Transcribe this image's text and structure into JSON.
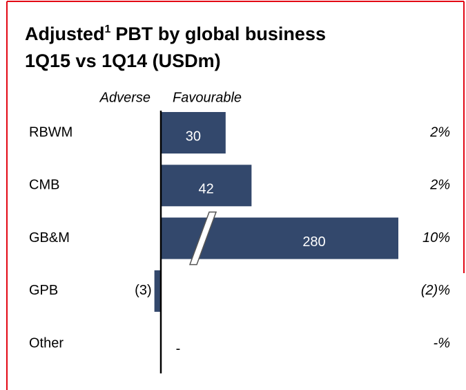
{
  "chart_data": {
    "type": "bar",
    "orientation": "horizontal",
    "title_parts": [
      "Adjusted",
      "1",
      "PBT by global business",
      "1Q15 vs 1Q14 (USDm)"
    ],
    "axis_labels": {
      "negative": "Adverse",
      "positive": "Favourable"
    },
    "categories": [
      "RBWM",
      "CMB",
      "GB&M",
      "GPB",
      "Other"
    ],
    "values": [
      30,
      42,
      280,
      -3,
      0
    ],
    "value_labels": [
      "30",
      "42",
      "280",
      "(3)",
      "-"
    ],
    "change_labels": [
      "2%",
      "2%",
      "10%",
      "(2)%",
      "-%"
    ],
    "color": "#33486c",
    "xlim": [
      -4,
      110
    ],
    "axis_break": true
  }
}
